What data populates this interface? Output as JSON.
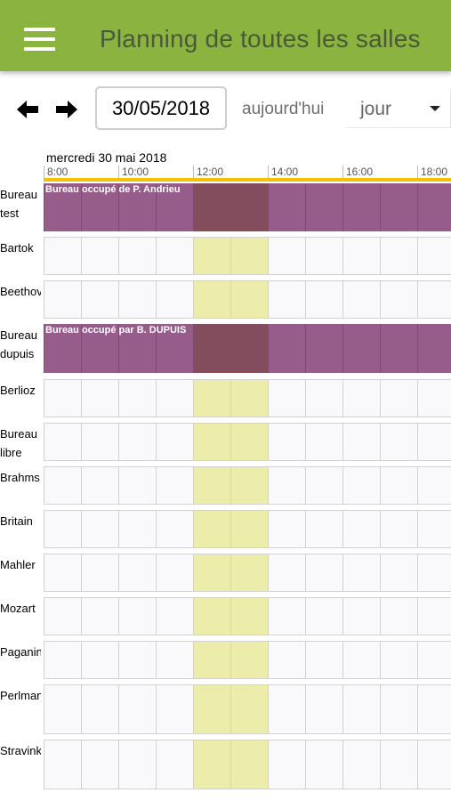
{
  "header": {
    "title": "Planning de toutes les salles",
    "menu_icon": "hamburger-menu-icon",
    "color": "#8ab43f"
  },
  "toolbar": {
    "prev_icon": "arrow-left-icon",
    "next_icon": "arrow-right-icon",
    "date_value": "30/05/2018",
    "today_label": "aujourd'hui",
    "view_value": "jour"
  },
  "schedule": {
    "day_label": "mercredi 30 mai 2018",
    "time_labels": [
      "8:00",
      "10:00",
      "12:00",
      "14:00",
      "16:00",
      "18:00"
    ],
    "colors": {
      "booking": "#965c8a",
      "lunch": "#ecedaa",
      "now_bar": "#f2c200"
    },
    "rooms": [
      {
        "name": "Bureau test",
        "booking": "Bureau occupé de P. Andrieu"
      },
      {
        "name": "Bartok"
      },
      {
        "name": "Beethoven"
      },
      {
        "name": "Bureau dupuis",
        "booking": "Bureau occupé par B. DUPUIS"
      },
      {
        "name": "Berlioz"
      },
      {
        "name": "Bureau libre"
      },
      {
        "name": "Brahms"
      },
      {
        "name": "Britain"
      },
      {
        "name": "Mahler"
      },
      {
        "name": "Mozart"
      },
      {
        "name": "Paganini"
      },
      {
        "name": "Perlman"
      },
      {
        "name": "Stravinky"
      }
    ]
  }
}
